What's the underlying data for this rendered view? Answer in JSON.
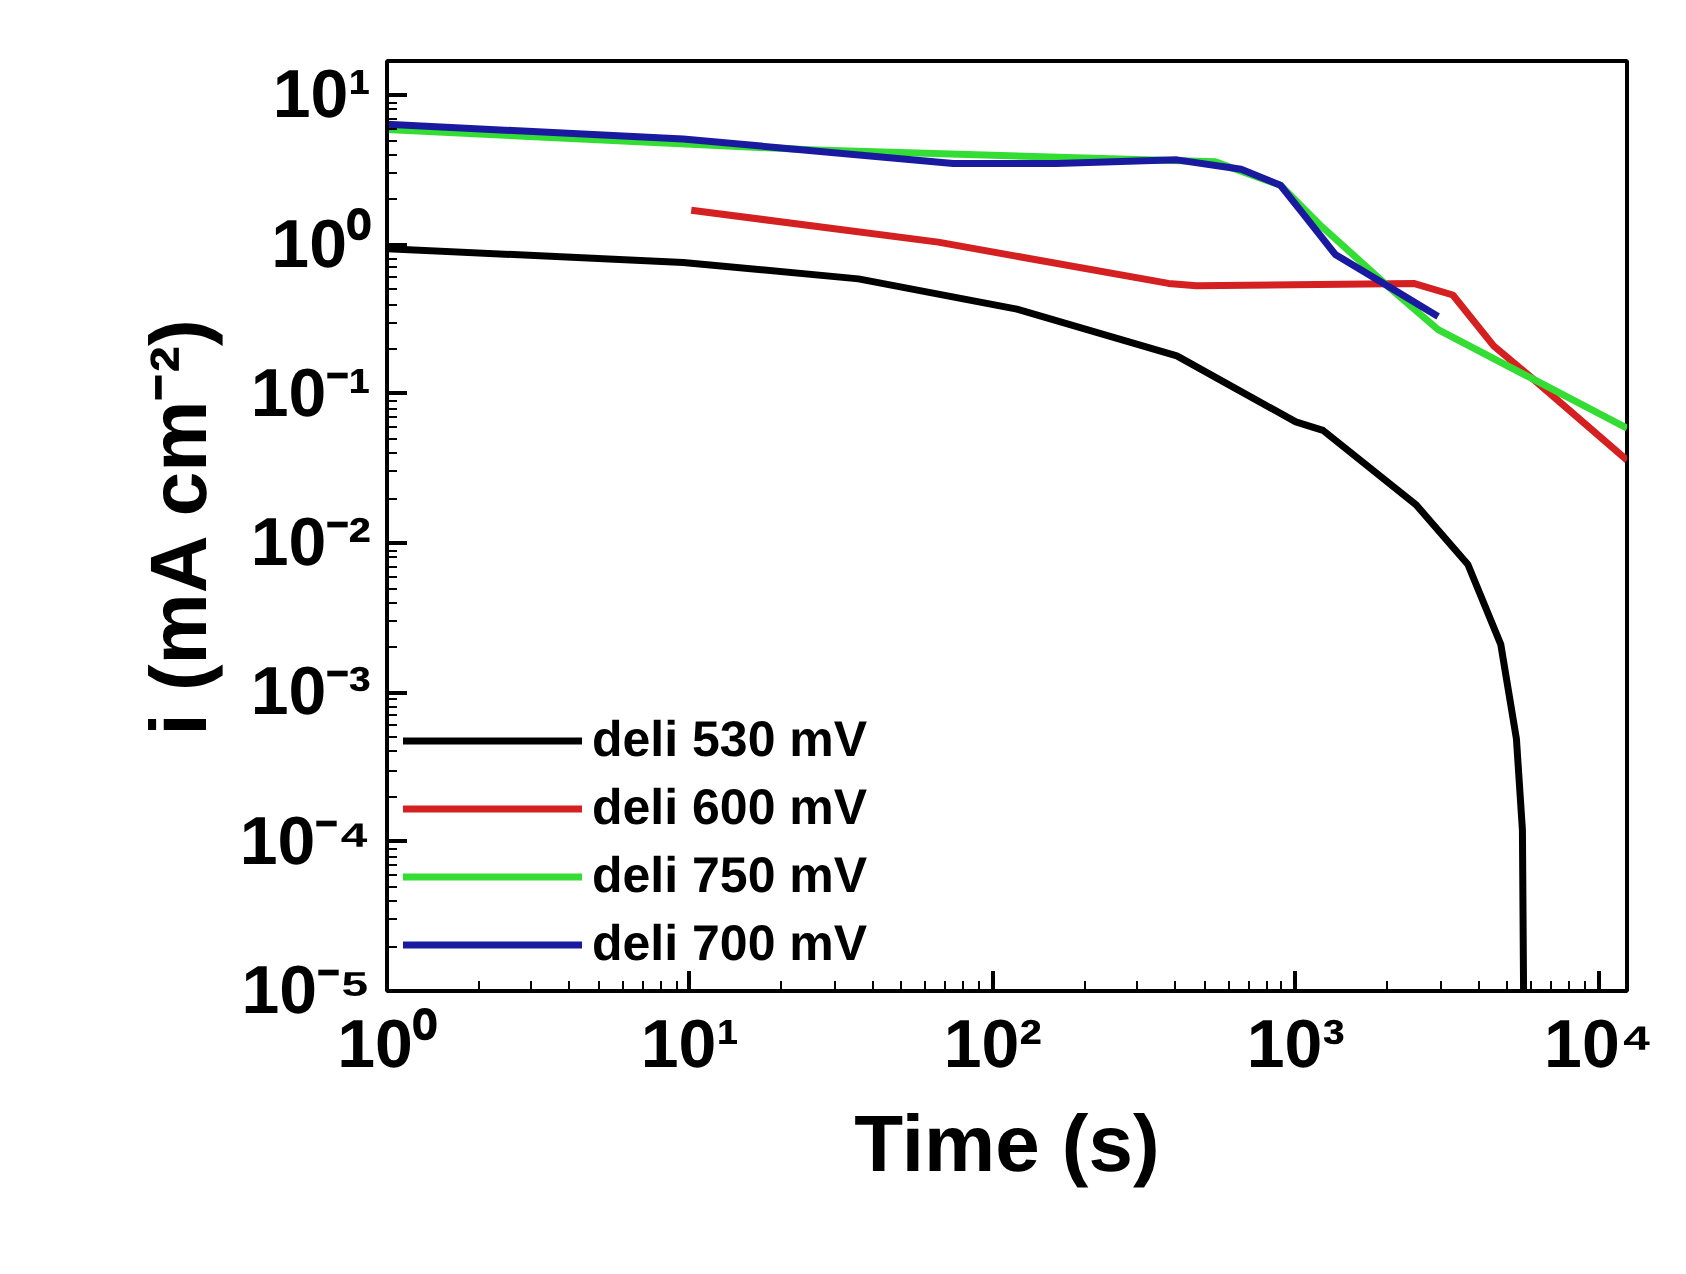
{
  "chart_data": {
    "type": "line",
    "xlabel": "Time (s)",
    "ylabel": "i (mA cm⁻²)",
    "log": "xy",
    "xlim": [
      1,
      12400
    ],
    "ylim": [
      1e-05,
      17
    ],
    "xticks": [
      {
        "value": 1,
        "label": "10⁰"
      },
      {
        "value": 10,
        "label": "10¹"
      },
      {
        "value": 100,
        "label": "10²"
      },
      {
        "value": 1000,
        "label": "10³"
      },
      {
        "value": 10000,
        "label": "10⁴"
      }
    ],
    "yticks": [
      {
        "value": 1e-05,
        "label": "10⁻⁵"
      },
      {
        "value": 0.0001,
        "label": "10⁻⁴"
      },
      {
        "value": 0.001,
        "label": "10⁻³"
      },
      {
        "value": 0.01,
        "label": "10⁻²"
      },
      {
        "value": 0.1,
        "label": "10⁻¹"
      },
      {
        "value": 1,
        "label": "10⁰"
      },
      {
        "value": 10,
        "label": "10¹"
      }
    ],
    "grid": false,
    "legend": "bottom left",
    "line_style": "solid",
    "marker": "none",
    "series": [
      {
        "name": "deli 530 mV",
        "color": "#000000",
        "x": [
          1,
          9.5,
          36,
          120,
          405,
          1000,
          1230,
          2500,
          3700,
          4750,
          5350,
          5600,
          5650
        ],
        "values": [
          0.94,
          0.76,
          0.59,
          0.37,
          0.18,
          0.065,
          0.057,
          0.018,
          0.0072,
          0.0021,
          0.00049,
          0.00012,
          1e-05
        ]
      },
      {
        "name": "deli 600 mV",
        "color": "#d42020",
        "x": [
          10.1,
          66,
          380,
          470,
          2450,
          3300,
          4500,
          6100,
          12400
        ],
        "values": [
          1.7,
          1.04,
          0.55,
          0.53,
          0.55,
          0.46,
          0.21,
          0.125,
          0.036
        ]
      },
      {
        "name": "deli 750 mV",
        "color": "#33dd33",
        "x": [
          1,
          26,
          540,
          890,
          1200,
          2050,
          2950,
          6100,
          12400
        ],
        "values": [
          5.9,
          4.3,
          3.6,
          2.5,
          1.36,
          0.51,
          0.27,
          0.125,
          0.059
        ]
      },
      {
        "name": "deli 700 mV",
        "color": "#1a1aa0",
        "x": [
          1,
          9.5,
          74,
          162,
          405,
          660,
          890,
          1050,
          1350,
          1950,
          2950
        ],
        "values": [
          6.4,
          5.1,
          3.5,
          3.5,
          3.7,
          3.2,
          2.5,
          1.64,
          0.86,
          0.55,
          0.33
        ]
      }
    ]
  }
}
